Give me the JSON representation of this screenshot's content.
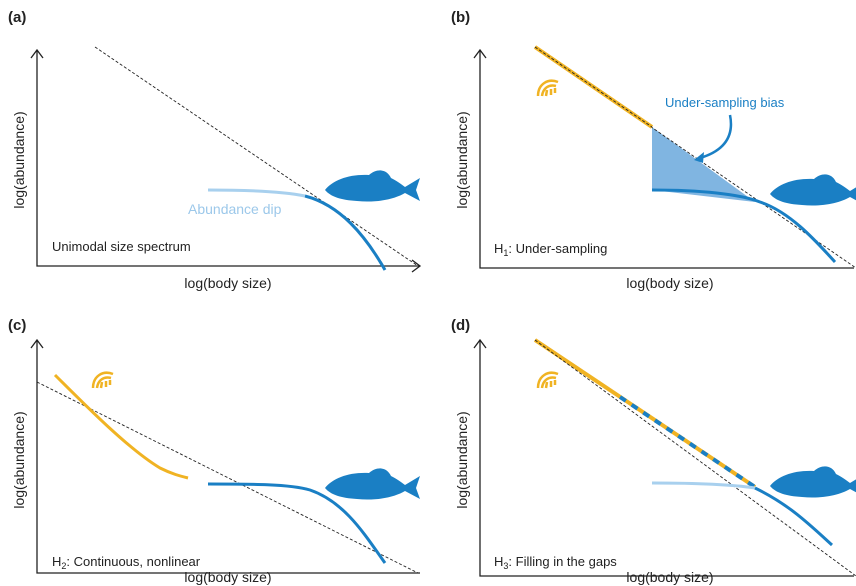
{
  "panels": [
    {
      "label": "(a)",
      "y_axis_label": "log(abundance)",
      "x_axis_label": "log(body size)",
      "annotation": "Abundance dip",
      "caption": {
        "text": "Unimodal size spectrum"
      }
    },
    {
      "label": "(b)",
      "y_axis_label": "log(abundance)",
      "x_axis_label": "log(body size)",
      "annotation": "Under-sampling bias",
      "caption": {
        "hypothesis": "H",
        "index": "1",
        "text": ": Under-sampling"
      }
    },
    {
      "label": "(c)",
      "y_axis_label": "log(abundance)",
      "x_axis_label": "log(body size)",
      "caption": {
        "hypothesis": "H",
        "index": "2",
        "text": ": Continuous, nonlinear"
      }
    },
    {
      "label": "(d)",
      "y_axis_label": "log(abundance)",
      "x_axis_label": "log(body size)",
      "caption": {
        "hypothesis": "H",
        "index": "3",
        "text": ": Filling in the gaps"
      }
    }
  ]
}
